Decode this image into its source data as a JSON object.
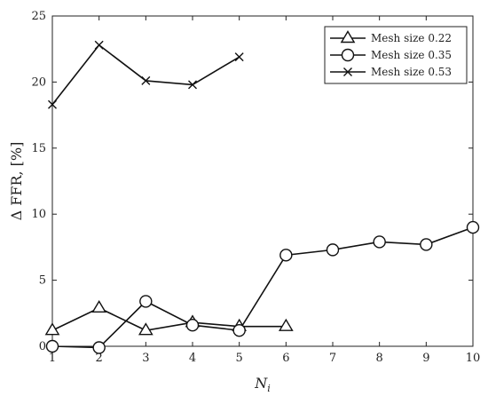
{
  "chart_data": {
    "type": "line",
    "xlabel": "N",
    "xlabel_sub": "i",
    "ylabel": "Δ FFR, [%]",
    "xlim": [
      1,
      10
    ],
    "ylim": [
      0,
      25
    ],
    "xticks": [
      1,
      2,
      3,
      4,
      5,
      6,
      7,
      8,
      9,
      10
    ],
    "yticks": [
      0,
      5,
      10,
      15,
      20,
      25
    ],
    "grid": false,
    "legend_position": "top-right",
    "series": [
      {
        "name": "Mesh size 0.22",
        "marker": "triangle",
        "x": [
          1,
          2,
          3,
          4,
          5,
          6
        ],
        "y": [
          1.2,
          2.9,
          1.2,
          1.8,
          1.5,
          1.5
        ]
      },
      {
        "name": "Mesh size 0.35",
        "marker": "circle",
        "x": [
          1,
          2,
          3,
          4,
          5,
          6,
          7,
          8,
          9,
          10
        ],
        "y": [
          0.0,
          -0.1,
          3.4,
          1.6,
          1.2,
          6.9,
          7.3,
          7.9,
          7.7,
          9.0
        ]
      },
      {
        "name": "Mesh size 0.53",
        "marker": "x",
        "x": [
          1,
          2,
          3,
          4,
          5
        ],
        "y": [
          18.3,
          22.8,
          20.1,
          19.8,
          21.9
        ]
      }
    ]
  }
}
